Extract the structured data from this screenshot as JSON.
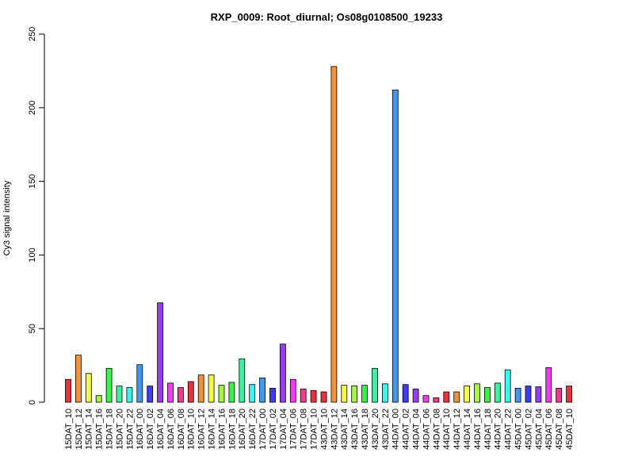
{
  "chart_data": {
    "type": "bar",
    "title": "RXP_0009: Root_diurnal; Os08g0108500_19233",
    "xlabel": "",
    "ylabel": "Cy3 signal intensity",
    "ylim": [
      0,
      250
    ],
    "yticks": [
      0,
      50,
      100,
      150,
      200,
      250
    ],
    "grid": false,
    "categories": [
      "15DAT_10",
      "15DAT_12",
      "15DAT_14",
      "15DAT_16",
      "15DAT_18",
      "15DAT_20",
      "15DAT_22",
      "16DAT_00",
      "16DAT_02",
      "16DAT_04",
      "16DAT_06",
      "16DAT_08",
      "16DAT_10",
      "16DAT_12",
      "16DAT_14",
      "16DAT_16",
      "16DAT_18",
      "16DAT_20",
      "16DAT_22",
      "17DAT_00",
      "17DAT_02",
      "17DAT_04",
      "17DAT_06",
      "17DAT_08",
      "17DAT_10",
      "43DAT_10",
      "43DAT_12",
      "43DAT_14",
      "43DAT_16",
      "43DAT_18",
      "43DAT_20",
      "43DAT_22",
      "44DAT_00",
      "44DAT_02",
      "44DAT_04",
      "44DAT_06",
      "44DAT_08",
      "44DAT_10",
      "44DAT_12",
      "44DAT_14",
      "44DAT_16",
      "44DAT_18",
      "44DAT_20",
      "44DAT_22",
      "45DAT_00",
      "45DAT_02",
      "45DAT_04",
      "45DAT_06",
      "45DAT_08",
      "45DAT_10"
    ],
    "values": [
      15.5,
      32,
      19.5,
      4.5,
      23,
      11,
      10,
      25.5,
      11,
      67.5,
      13,
      10,
      14,
      18.5,
      18.5,
      11.5,
      13.5,
      29.5,
      12,
      16.5,
      9.5,
      39.5,
      15.5,
      9,
      8,
      7,
      228,
      11.5,
      11,
      11.5,
      23,
      12.5,
      212,
      12,
      9,
      4.5,
      3,
      7,
      7,
      11,
      12.5,
      10,
      13,
      22,
      9.5,
      11,
      10.5,
      23.5,
      9.5,
      11
    ],
    "colors": [
      "#e8323c",
      "#f2913c",
      "#f7f74a",
      "#a8f54a",
      "#3cf04a",
      "#3cf0a0",
      "#3cf5f0",
      "#4098f0",
      "#3c3cf0",
      "#9b3cf0",
      "#f03cf0",
      "#f03c8c",
      "#e8323c",
      "#f2913c",
      "#f7f74a",
      "#a8f54a",
      "#3cf04a",
      "#3cf0a0",
      "#3cf5f0",
      "#4098f0",
      "#3c3cf0",
      "#9b3cf0",
      "#f03cf0",
      "#f03c8c",
      "#e8323c",
      "#e8323c",
      "#f2913c",
      "#f7f74a",
      "#a8f54a",
      "#3cf04a",
      "#3cf0a0",
      "#3cf5f0",
      "#4098f0",
      "#3c3cf0",
      "#9b3cf0",
      "#f03cf0",
      "#f03c8c",
      "#e8323c",
      "#f2913c",
      "#f7f74a",
      "#a8f54a",
      "#3cf04a",
      "#3cf0a0",
      "#3cf5f0",
      "#4098f0",
      "#3c3cf0",
      "#9b3cf0",
      "#f03cf0",
      "#f03c8c",
      "#e8323c"
    ]
  }
}
